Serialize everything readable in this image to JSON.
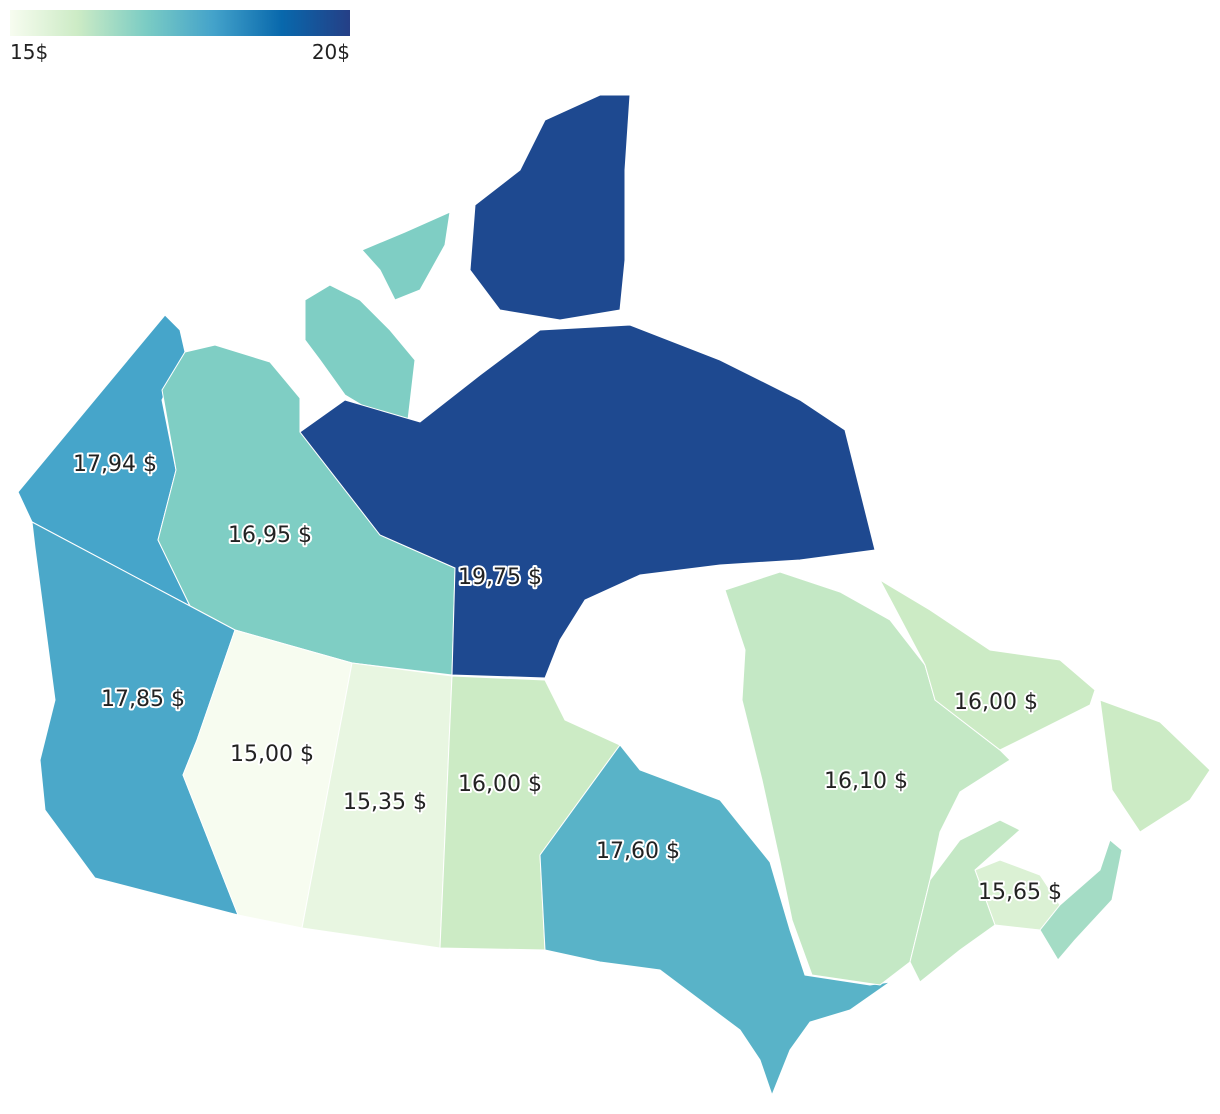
{
  "chart_data": {
    "type": "choropleth",
    "colorscale": [
      "#f7fcf0",
      "#ccebc5",
      "#7bccc4",
      "#43a2ca",
      "#0868ac",
      "#253f86"
    ],
    "clim": [
      15,
      20
    ],
    "cticks": [
      {
        "value": 15,
        "label": "15$"
      },
      {
        "value": 20,
        "label": "20$"
      }
    ],
    "values": [
      17.94,
      16.95,
      19.75,
      17.85,
      15.0,
      15.35,
      16.0,
      17.6,
      16.1,
      16.0,
      15.65,
      16.1,
      16.5
    ],
    "value_labels": [
      "17,94 $",
      "16,95 $",
      "19,75 $",
      "17,85 $",
      "15,00 $",
      "15,35 $",
      "16,00 $",
      "17,60 $",
      "16,10 $",
      "16,00 $",
      "15,65 $",
      null,
      null
    ]
  }
}
